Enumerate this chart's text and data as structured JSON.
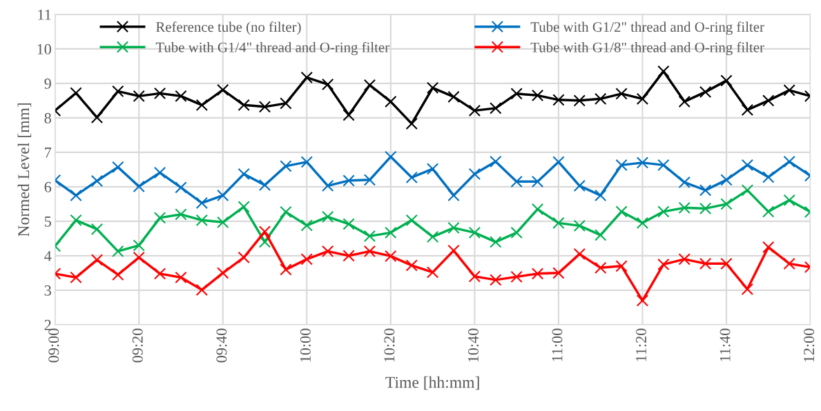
{
  "chart_data": {
    "type": "line",
    "xlabel": "Time [hh:mm]",
    "ylabel": "Normed Level [mm]",
    "x": [
      9,
      9.0833,
      9.1667,
      9.25,
      9.3333,
      9.4167,
      9.5,
      9.5833,
      9.6667,
      9.75,
      9.8333,
      9.9167,
      10,
      10.0833,
      10.1667,
      10.25,
      10.3333,
      10.4167,
      10.5,
      10.5833,
      10.6667,
      10.75,
      10.8333,
      10.9167,
      11,
      11.0833,
      11.1667,
      11.25,
      11.3333,
      11.4167,
      11.5,
      11.5833,
      11.6667,
      11.75,
      11.8333,
      11.9167,
      12
    ],
    "series": [
      {
        "name": "Reference tube (no filter)",
        "color": "#000000",
        "values": [
          8.21,
          8.72,
          8.01,
          8.77,
          8.63,
          8.71,
          8.63,
          8.37,
          8.81,
          8.37,
          8.32,
          8.42,
          9.17,
          8.97,
          8.08,
          8.95,
          8.47,
          7.83,
          8.87,
          8.61,
          8.21,
          8.28,
          8.7,
          8.65,
          8.52,
          8.5,
          8.55,
          8.7,
          8.55,
          9.35,
          8.47,
          8.75,
          9.08,
          8.23,
          8.5,
          8.8,
          8.63
        ]
      },
      {
        "name": "Tube with G1/4\" thread and O-ring filter",
        "color": "#00b050",
        "values": [
          4.28,
          5.03,
          4.77,
          4.13,
          4.3,
          5.1,
          5.2,
          5.03,
          4.97,
          5.42,
          4.4,
          5.27,
          4.88,
          5.13,
          4.92,
          4.57,
          4.67,
          5.03,
          4.55,
          4.81,
          4.67,
          4.4,
          4.67,
          5.35,
          4.95,
          4.87,
          4.6,
          5.28,
          4.95,
          5.28,
          5.39,
          5.37,
          5.5,
          5.9,
          5.28,
          5.61,
          5.27
        ]
      },
      {
        "name": "Tube with G1/2\" thread and O-ring filter",
        "color": "#0070c0",
        "values": [
          6.19,
          5.75,
          6.17,
          6.57,
          6.01,
          6.41,
          5.98,
          5.53,
          5.75,
          6.37,
          6.05,
          6.6,
          6.72,
          6.03,
          6.18,
          6.2,
          6.87,
          6.27,
          6.52,
          5.75,
          6.37,
          6.73,
          6.15,
          6.15,
          6.72,
          6.03,
          5.75,
          6.63,
          6.7,
          6.63,
          6.13,
          5.9,
          6.2,
          6.63,
          6.28,
          6.73,
          6.32
        ]
      },
      {
        "name": "Tube with G1/8\" thread and O-ring filter",
        "color": "#ff0000",
        "values": [
          3.48,
          3.37,
          3.88,
          3.45,
          3.95,
          3.48,
          3.37,
          3.01,
          3.5,
          3.95,
          4.7,
          3.6,
          3.9,
          4.13,
          4.0,
          4.13,
          3.99,
          3.72,
          3.52,
          4.15,
          3.4,
          3.3,
          3.39,
          3.48,
          3.5,
          4.05,
          3.65,
          3.7,
          2.7,
          3.75,
          3.9,
          3.77,
          3.77,
          3.03,
          4.25,
          3.77,
          3.67
        ]
      }
    ],
    "xlim": [
      9,
      12
    ],
    "xticks": [
      {
        "value": 9,
        "label": "09:00"
      },
      {
        "value": 9.3333,
        "label": "09:20"
      },
      {
        "value": 9.6667,
        "label": "09:40"
      },
      {
        "value": 10,
        "label": "10:00"
      },
      {
        "value": 10.3333,
        "label": "10:20"
      },
      {
        "value": 10.6667,
        "label": "10:40"
      },
      {
        "value": 11,
        "label": "11:00"
      },
      {
        "value": 11.3333,
        "label": "11:20"
      },
      {
        "value": 11.6667,
        "label": "11:40"
      },
      {
        "value": 12,
        "label": "12:00"
      }
    ],
    "ylim": [
      2,
      11
    ],
    "yticks": [
      2,
      3,
      4,
      5,
      6,
      7,
      8,
      9,
      10,
      11
    ],
    "grid": true,
    "legend": "top",
    "marker": "cross",
    "line_style": "solid"
  }
}
